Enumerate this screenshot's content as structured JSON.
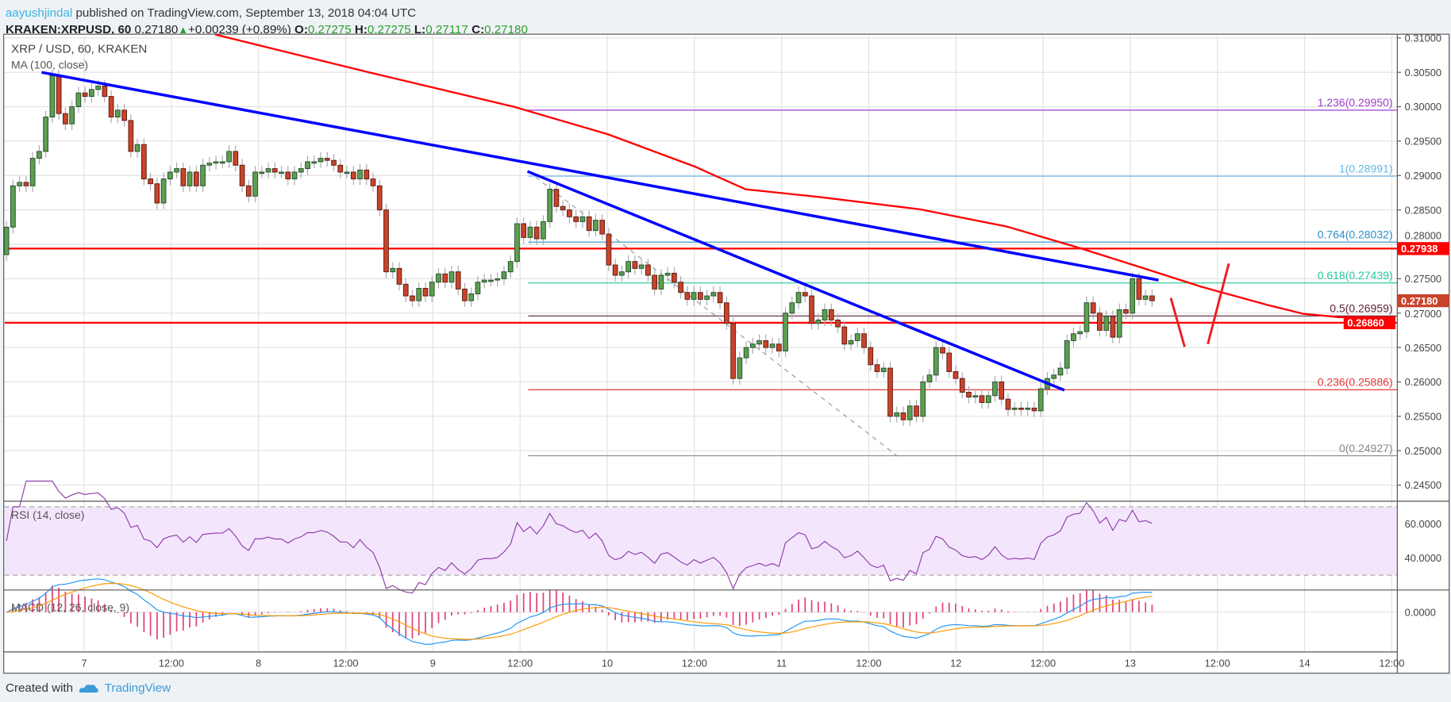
{
  "header": {
    "author": "aayushjindal",
    "published": "published on TradingView.com, September 13, 2018 04:04 UTC",
    "symbol": "KRAKEN:XRPUSD, 60",
    "last": "0.27180",
    "change": "+0.00239 (+0.89%)",
    "o_label": "O:",
    "o": "0.27275",
    "h_label": "H:",
    "h": "0.27275",
    "l_label": "L:",
    "l": "0.27117",
    "c_label": "C:",
    "c": "0.27180"
  },
  "legend": {
    "title": "XRP / USD, 60, KRAKEN",
    "ma": "MA (100, close)",
    "rsi": "RSI (14, close)",
    "macd": "MACD (12, 26, close, 9)"
  },
  "footer": {
    "created": "Created with",
    "brand": "TradingView"
  },
  "colors": {
    "up": "#5e9e50",
    "down": "#c9432b",
    "ma": "#ff0000",
    "trend": "#0000ff",
    "macd": "#2196f3",
    "signal": "#ff9800",
    "hist": "#e0457b"
  },
  "chart_data": {
    "type": "candlestick",
    "interval_hours": 1,
    "first_candle": "Sep 6 13:00",
    "closes": [
      0.2825,
      0.2885,
      0.289,
      0.2885,
      0.2925,
      0.2935,
      0.2985,
      0.3045,
      0.299,
      0.2975,
      0.3,
      0.302,
      0.3015,
      0.3025,
      0.303,
      0.3015,
      0.2985,
      0.2995,
      0.298,
      0.2935,
      0.2945,
      0.2895,
      0.2888,
      0.286,
      0.2895,
      0.2905,
      0.291,
      0.2885,
      0.2905,
      0.2885,
      0.2915,
      0.2918,
      0.292,
      0.292,
      0.2935,
      0.2915,
      0.2885,
      0.287,
      0.2905,
      0.2905,
      0.291,
      0.2905,
      0.2905,
      0.2895,
      0.2905,
      0.291,
      0.292,
      0.292,
      0.2925,
      0.2922,
      0.2915,
      0.2905,
      0.2905,
      0.2895,
      0.2908,
      0.2895,
      0.2885,
      0.285,
      0.276,
      0.2765,
      0.2742,
      0.2725,
      0.2718,
      0.2736,
      0.2725,
      0.2745,
      0.2757,
      0.2745,
      0.276,
      0.2735,
      0.2718,
      0.2728,
      0.2745,
      0.2748,
      0.2748,
      0.275,
      0.276,
      0.2775,
      0.283,
      0.281,
      0.2825,
      0.2808,
      0.2833,
      0.288,
      0.2855,
      0.285,
      0.284,
      0.2833,
      0.284,
      0.282,
      0.2835,
      0.2815,
      0.277,
      0.2755,
      0.276,
      0.2775,
      0.2765,
      0.277,
      0.2755,
      0.2735,
      0.2755,
      0.2758,
      0.2745,
      0.273,
      0.272,
      0.273,
      0.272,
      0.2725,
      0.273,
      0.2715,
      0.2685,
      0.2605,
      0.2635,
      0.265,
      0.2655,
      0.266,
      0.265,
      0.2655,
      0.2645,
      0.27,
      0.2715,
      0.273,
      0.2725,
      0.2685,
      0.269,
      0.2705,
      0.269,
      0.268,
      0.2655,
      0.266,
      0.267,
      0.265,
      0.2625,
      0.2615,
      0.262,
      0.255,
      0.2555,
      0.2545,
      0.2565,
      0.255,
      0.26,
      0.261,
      0.265,
      0.2642,
      0.2615,
      0.2605,
      0.2585,
      0.2578,
      0.258,
      0.257,
      0.258,
      0.26,
      0.2575,
      0.256,
      0.2562,
      0.256,
      0.2562,
      0.2558,
      0.259,
      0.2605,
      0.261,
      0.262,
      0.266,
      0.267,
      0.2673,
      0.2715,
      0.27,
      0.2675,
      0.2695,
      0.2665,
      0.2705,
      0.27,
      0.275,
      0.272,
      0.2725,
      0.2718
    ],
    "ma100": [
      [
        28.8,
        0.3105
      ],
      [
        50,
        0.305
      ],
      [
        70,
        0.3
      ],
      [
        83,
        0.296
      ],
      [
        95,
        0.2913
      ],
      [
        102,
        0.288
      ],
      [
        112,
        0.2869
      ],
      [
        126,
        0.2851
      ],
      [
        138,
        0.2826
      ],
      [
        148,
        0.2795
      ],
      [
        157,
        0.2765
      ],
      [
        165,
        0.2738
      ],
      [
        174,
        0.2712
      ],
      [
        179,
        0.2699
      ],
      [
        184,
        0.2694
      ],
      [
        190,
        0.2694
      ]
    ],
    "price_axis": {
      "min": 0.2425,
      "max": 0.3105,
      "ticks": [
        "0.24500",
        "0.25000",
        "0.25500",
        "0.26000",
        "0.26500",
        "0.27000",
        "0.27500",
        "0.28000",
        "0.28500",
        "0.29000",
        "0.29500",
        "0.30000",
        "0.30500",
        "0.31000"
      ]
    },
    "time_labels": [
      "7",
      "12:00",
      "8",
      "12:00",
      "9",
      "12:00",
      "10",
      "12:00",
      "11",
      "12:00",
      "12",
      "12:00",
      "13",
      "12:00",
      "14",
      "12:00"
    ],
    "horizontal_levels": [
      {
        "price": 0.27938,
        "label": "0.27938"
      },
      {
        "price": 0.2686,
        "label": "0.26860"
      }
    ],
    "last_price_label": "0.27180",
    "last_price": 0.2718,
    "fibonacci": {
      "start_index": 72,
      "levels": [
        {
          "ratio": "1.236",
          "price": 0.2995,
          "label": "1.236(0.29950)",
          "color": "#9c3fc8"
        },
        {
          "ratio": "1",
          "price": 0.28991,
          "label": "1(0.28991)",
          "color": "#64b5e6"
        },
        {
          "ratio": "0.764",
          "price": 0.28032,
          "label": "0.764(0.28032)",
          "color": "#2b8fc9"
        },
        {
          "ratio": "0.618",
          "price": 0.27439,
          "label": "0.618(0.27439)",
          "color": "#26c89a"
        },
        {
          "ratio": "0.5",
          "price": 0.26959,
          "label": "0.5(0.26959)",
          "color": "#5a2038"
        },
        {
          "ratio": "0.236",
          "price": 0.25886,
          "label": "0.236(0.25886)",
          "color": "#e53935"
        },
        {
          "ratio": "0",
          "price": 0.24927,
          "label": "0(0.24927)",
          "color": "#888888"
        }
      ]
    },
    "trendlines": [
      {
        "from": [
          4.85,
          0.305
        ],
        "to": [
          159,
          0.2748
        ]
      },
      {
        "from": [
          71.9,
          0.2906
        ],
        "to": [
          146,
          0.2588
        ]
      }
    ],
    "dashed_line": {
      "from": [
        72,
        0.2906
      ],
      "to": [
        123,
        0.2492
      ]
    },
    "annotation_v": [
      [
        160.7,
        0.2722
      ],
      [
        162.6,
        0.2651
      ],
      [
        165.8,
        0.2655
      ],
      [
        168.7,
        0.2772
      ]
    ],
    "rsi": {
      "period": 14,
      "upper": 70,
      "lower": 30,
      "ticks": [
        "60.0000",
        "40.0000"
      ]
    },
    "macd": {
      "fast": 12,
      "slow": 26,
      "signal": 9,
      "ticks": [
        "0.0000"
      ]
    }
  }
}
